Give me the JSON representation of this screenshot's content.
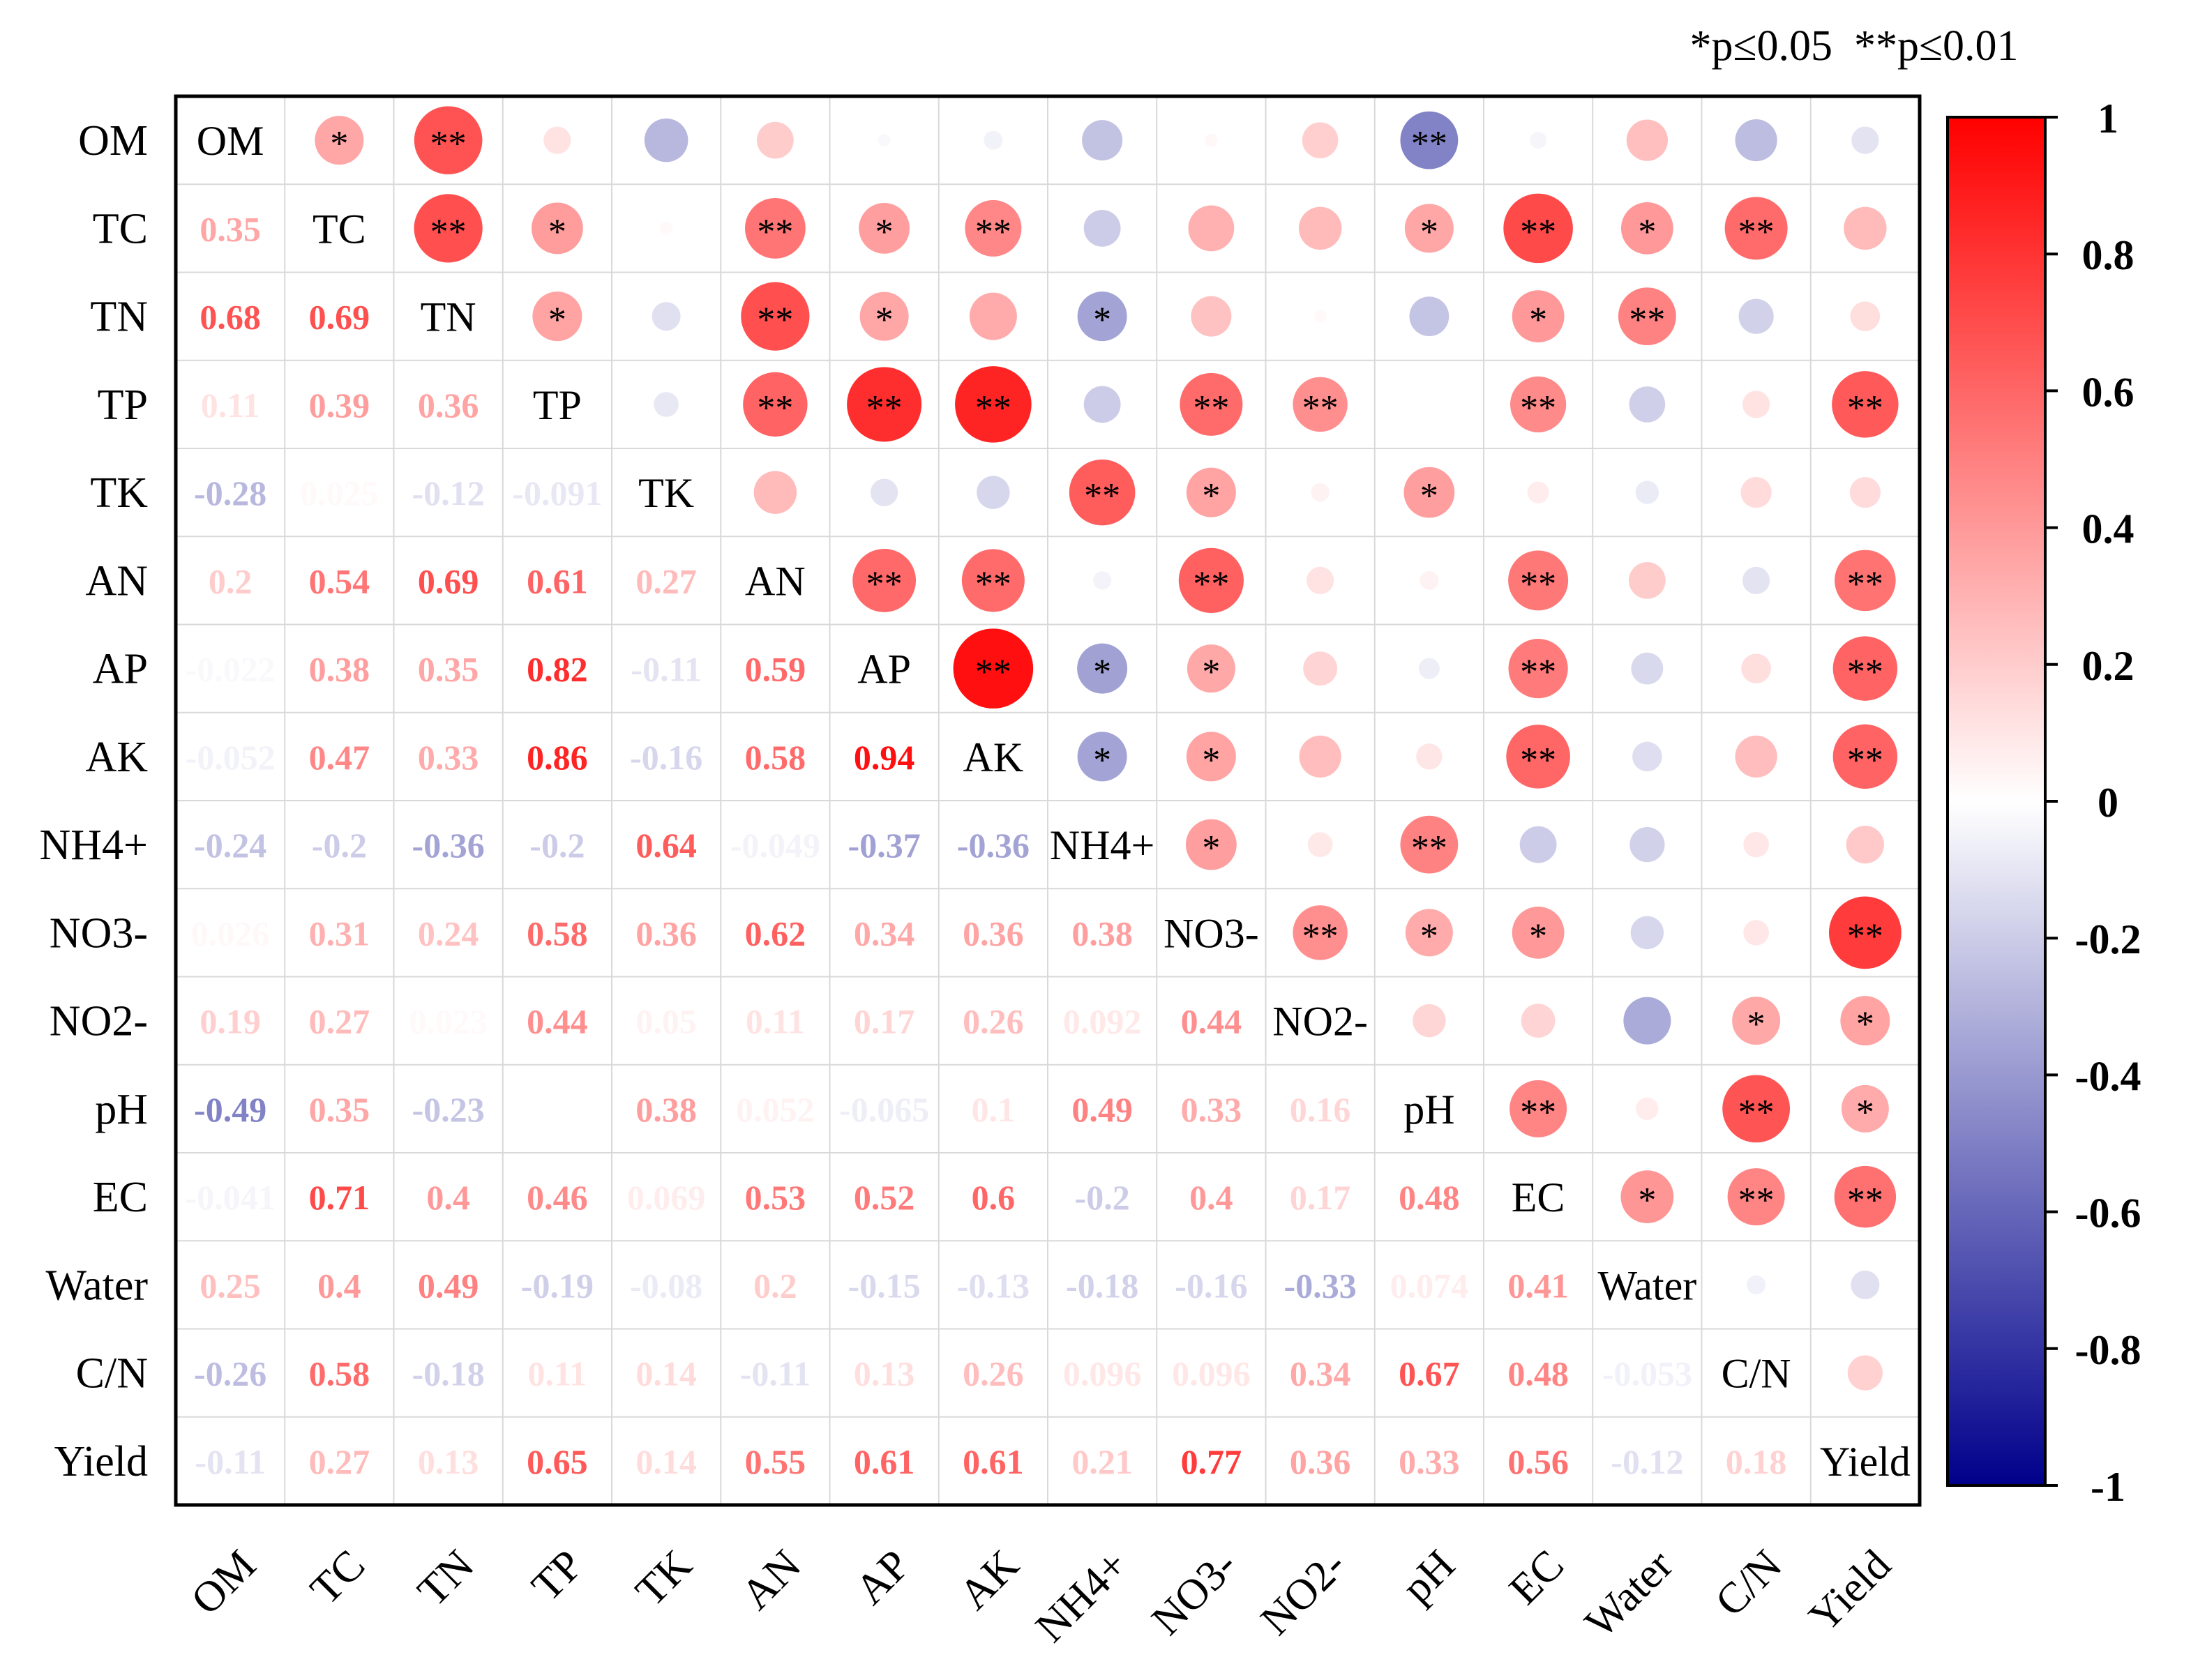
{
  "chart_data": {
    "type": "heatmap",
    "subtype": "correlation-matrix",
    "variables": [
      "OM",
      "TC",
      "TN",
      "TP",
      "TK",
      "AN",
      "AP",
      "AK",
      "NH4+",
      "NO3-",
      "NO2-",
      "pH",
      "EC",
      "Water",
      "C/N",
      "Yield"
    ],
    "lower_values": [
      [],
      [
        0.35
      ],
      [
        0.68,
        0.69
      ],
      [
        0.11,
        0.39,
        0.36
      ],
      [
        -0.28,
        0.025,
        -0.12,
        -0.091
      ],
      [
        0.2,
        0.54,
        0.69,
        0.61,
        0.27
      ],
      [
        -0.022,
        0.38,
        0.35,
        0.82,
        -0.11,
        0.59
      ],
      [
        -0.052,
        0.47,
        0.33,
        0.86,
        -0.16,
        0.58,
        0.94
      ],
      [
        -0.24,
        -0.2,
        -0.36,
        -0.2,
        0.64,
        -0.049,
        -0.37,
        -0.36
      ],
      [
        0.026,
        0.31,
        0.24,
        0.58,
        0.36,
        0.62,
        0.34,
        0.36,
        0.38
      ],
      [
        0.19,
        0.27,
        0.023,
        0.44,
        0.05,
        0.11,
        0.17,
        0.26,
        0.092,
        0.44
      ],
      [
        -0.49,
        0.35,
        -0.23,
        null,
        0.38,
        0.052,
        -0.065,
        0.1,
        0.49,
        0.33,
        0.16
      ],
      [
        -0.041,
        0.71,
        0.4,
        0.46,
        0.069,
        0.53,
        0.52,
        0.6,
        -0.2,
        0.4,
        0.17,
        0.48
      ],
      [
        0.25,
        0.4,
        0.49,
        -0.19,
        -0.08,
        0.2,
        -0.15,
        -0.13,
        -0.18,
        -0.16,
        -0.33,
        0.074,
        0.41
      ],
      [
        -0.26,
        0.58,
        -0.18,
        0.11,
        0.14,
        -0.11,
        0.13,
        0.26,
        0.096,
        0.096,
        0.34,
        0.67,
        0.48,
        -0.053
      ],
      [
        -0.11,
        0.27,
        0.13,
        0.65,
        0.14,
        0.55,
        0.61,
        0.61,
        0.21,
        0.77,
        0.36,
        0.33,
        0.56,
        -0.12,
        0.18
      ]
    ],
    "significance_marks": [
      {
        "row": "OM",
        "col": "TC",
        "mark": "*"
      },
      {
        "row": "OM",
        "col": "TN",
        "mark": "**"
      },
      {
        "row": "OM",
        "col": "pH",
        "mark": "**"
      },
      {
        "row": "TC",
        "col": "TN",
        "mark": "**"
      },
      {
        "row": "TC",
        "col": "TP",
        "mark": "*"
      },
      {
        "row": "TC",
        "col": "AN",
        "mark": "**"
      },
      {
        "row": "TC",
        "col": "AP",
        "mark": "*"
      },
      {
        "row": "TC",
        "col": "AK",
        "mark": "**"
      },
      {
        "row": "TC",
        "col": "pH",
        "mark": "*"
      },
      {
        "row": "TC",
        "col": "EC",
        "mark": "**"
      },
      {
        "row": "TC",
        "col": "Water",
        "mark": "*"
      },
      {
        "row": "TC",
        "col": "C/N",
        "mark": "**"
      },
      {
        "row": "TN",
        "col": "TP",
        "mark": "*"
      },
      {
        "row": "TN",
        "col": "AN",
        "mark": "**"
      },
      {
        "row": "TN",
        "col": "AP",
        "mark": "*"
      },
      {
        "row": "TN",
        "col": "NH4+",
        "mark": "*"
      },
      {
        "row": "TN",
        "col": "EC",
        "mark": "*"
      },
      {
        "row": "TN",
        "col": "Water",
        "mark": "**"
      },
      {
        "row": "TP",
        "col": "AN",
        "mark": "**"
      },
      {
        "row": "TP",
        "col": "AP",
        "mark": "**"
      },
      {
        "row": "TP",
        "col": "AK",
        "mark": "**"
      },
      {
        "row": "TP",
        "col": "NO3-",
        "mark": "**"
      },
      {
        "row": "TP",
        "col": "NO2-",
        "mark": "**"
      },
      {
        "row": "TP",
        "col": "EC",
        "mark": "**"
      },
      {
        "row": "TP",
        "col": "Yield",
        "mark": "**"
      },
      {
        "row": "TK",
        "col": "NH4+",
        "mark": "**"
      },
      {
        "row": "TK",
        "col": "NO3-",
        "mark": "*"
      },
      {
        "row": "TK",
        "col": "pH",
        "mark": "*"
      },
      {
        "row": "AN",
        "col": "AP",
        "mark": "**"
      },
      {
        "row": "AN",
        "col": "AK",
        "mark": "**"
      },
      {
        "row": "AN",
        "col": "NO3-",
        "mark": "**"
      },
      {
        "row": "AN",
        "col": "EC",
        "mark": "**"
      },
      {
        "row": "AN",
        "col": "Yield",
        "mark": "**"
      },
      {
        "row": "AP",
        "col": "AK",
        "mark": "**"
      },
      {
        "row": "AP",
        "col": "NH4+",
        "mark": "*"
      },
      {
        "row": "AP",
        "col": "NO3-",
        "mark": "*"
      },
      {
        "row": "AP",
        "col": "EC",
        "mark": "**"
      },
      {
        "row": "AP",
        "col": "Yield",
        "mark": "**"
      },
      {
        "row": "AK",
        "col": "NH4+",
        "mark": "*"
      },
      {
        "row": "AK",
        "col": "NO3-",
        "mark": "*"
      },
      {
        "row": "AK",
        "col": "EC",
        "mark": "**"
      },
      {
        "row": "AK",
        "col": "Yield",
        "mark": "**"
      },
      {
        "row": "NH4+",
        "col": "NO3-",
        "mark": "*"
      },
      {
        "row": "NH4+",
        "col": "pH",
        "mark": "**"
      },
      {
        "row": "NO3-",
        "col": "NO2-",
        "mark": "**"
      },
      {
        "row": "NO3-",
        "col": "pH",
        "mark": "*"
      },
      {
        "row": "NO3-",
        "col": "EC",
        "mark": "*"
      },
      {
        "row": "NO3-",
        "col": "Yield",
        "mark": "**"
      },
      {
        "row": "NO2-",
        "col": "C/N",
        "mark": "*"
      },
      {
        "row": "NO2-",
        "col": "Yield",
        "mark": "*"
      },
      {
        "row": "pH",
        "col": "EC",
        "mark": "**"
      },
      {
        "row": "pH",
        "col": "C/N",
        "mark": "**"
      },
      {
        "row": "pH",
        "col": "Yield",
        "mark": "*"
      },
      {
        "row": "EC",
        "col": "Water",
        "mark": "*"
      },
      {
        "row": "EC",
        "col": "C/N",
        "mark": "**"
      },
      {
        "row": "EC",
        "col": "Yield",
        "mark": "**"
      }
    ],
    "legend_text": "*p≤0.05  **p≤0.01",
    "colorbar": {
      "range": [
        -1,
        1
      ],
      "tick_values": [
        1,
        0.8,
        0.6,
        0.4,
        0.2,
        0,
        -0.2,
        -0.4,
        -0.6,
        -0.8,
        -1
      ],
      "tick_labels": [
        "1",
        "0.8",
        "0.6",
        "0.4",
        "0.2",
        "0",
        "-0.2",
        "-0.4",
        "-0.6",
        "-0.8",
        "-1"
      ],
      "colors": {
        "negative": "#00008b",
        "zero": "#ffffff",
        "positive": "#ff0000"
      }
    }
  }
}
